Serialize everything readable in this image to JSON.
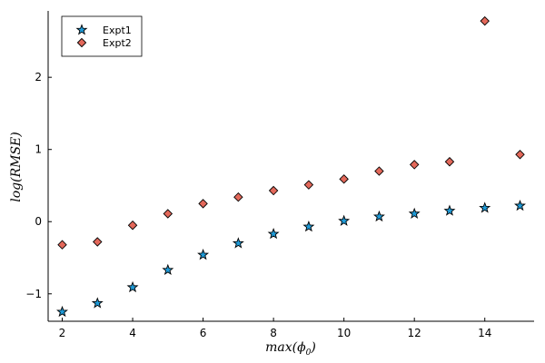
{
  "chart_data": {
    "type": "scatter",
    "title": "",
    "xlabel": "max(ϕ",
    "xlabel_subscript": "0",
    "xlabel_suffix": ")",
    "ylabel": "log(RMSE)",
    "xlim": [
      1.6,
      15.4
    ],
    "ylim": [
      -1.38,
      2.92
    ],
    "x_ticks": [
      2,
      4,
      6,
      8,
      10,
      12,
      14
    ],
    "y_ticks": [
      -1,
      0,
      1,
      2
    ],
    "y_tick_labels": [
      "−1",
      "0",
      "1",
      "2"
    ],
    "grid": false,
    "legend_position": "top-left",
    "series": [
      {
        "name": "Expt1",
        "marker": "star",
        "color": "#1f9bd8",
        "x": [
          2,
          3,
          4,
          5,
          6,
          7,
          8,
          9,
          10,
          11,
          12,
          13,
          14,
          15
        ],
        "y": [
          -1.25,
          -1.13,
          -0.91,
          -0.67,
          -0.46,
          -0.3,
          -0.17,
          -0.07,
          0.01,
          0.07,
          0.11,
          0.15,
          0.19,
          0.22
        ]
      },
      {
        "name": "Expt2",
        "marker": "diamond",
        "color": "#e3685a",
        "x": [
          2,
          3,
          4,
          5,
          6,
          7,
          8,
          9,
          10,
          11,
          12,
          13,
          14,
          15
        ],
        "y": [
          -0.32,
          -0.28,
          -0.05,
          0.11,
          0.25,
          0.34,
          0.43,
          0.51,
          0.59,
          0.7,
          0.79,
          0.83,
          2.78,
          0.93
        ]
      }
    ]
  }
}
